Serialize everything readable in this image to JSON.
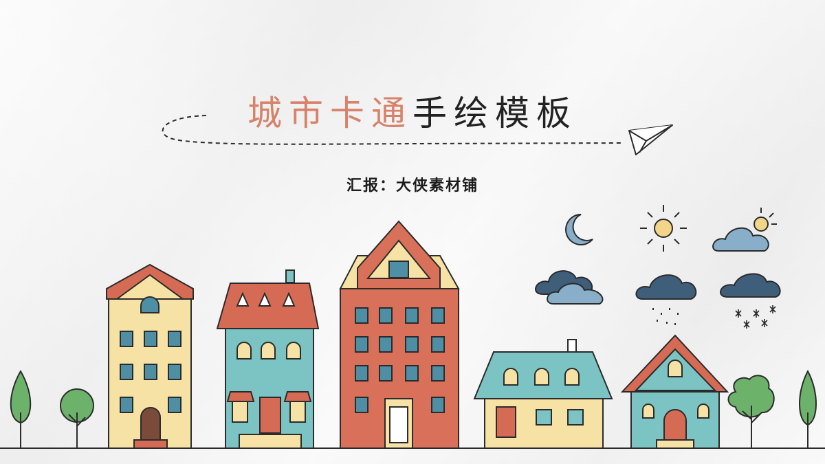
{
  "slide": {
    "title_accent": "城市卡通",
    "title_main": "手绘模板",
    "subtitle": "汇报：大侠素材铺"
  },
  "colors": {
    "accent": "#d7826a",
    "outline": "#2b2b2b",
    "roof_red": "#d56b55",
    "wall_yellow": "#f7e2a6",
    "wall_teal": "#7cc3c3",
    "wall_orange": "#d8705a",
    "window_blue": "#4e8fa6",
    "cloud_dark": "#3f5e7a",
    "cloud_light": "#89aec9",
    "sun": "#f3d58a",
    "tree_green": "#6db26a"
  },
  "icons": [
    "paper-plane-icon",
    "moon-icon",
    "sun-icon",
    "cloud-sun-icon",
    "cloud-icon",
    "rain-cloud-icon",
    "snow-cloud-icon",
    "tree-icon",
    "house-icon"
  ]
}
